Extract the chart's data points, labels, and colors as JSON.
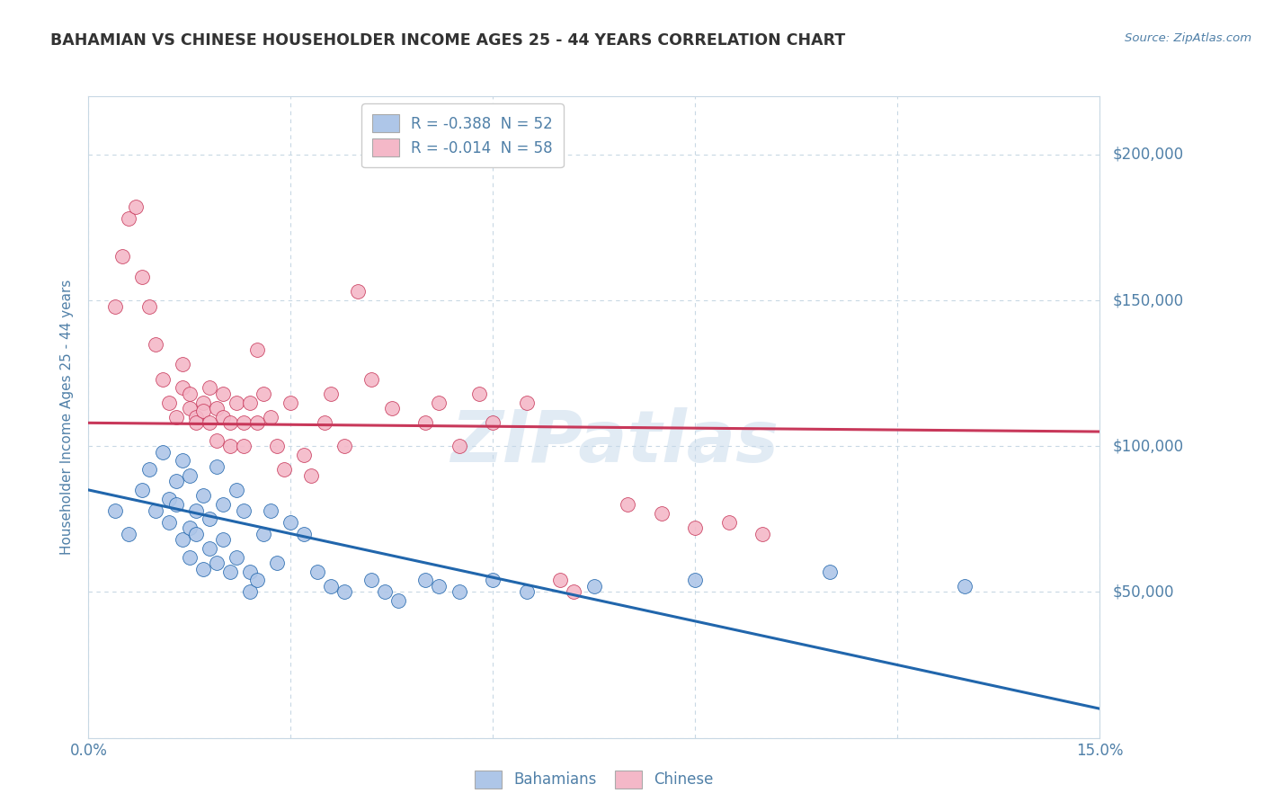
{
  "title": "BAHAMIAN VS CHINESE HOUSEHOLDER INCOME AGES 25 - 44 YEARS CORRELATION CHART",
  "source": "Source: ZipAtlas.com",
  "ylabel": "Householder Income Ages 25 - 44 years",
  "xlim": [
    0.0,
    0.15
  ],
  "ylim": [
    0,
    220000
  ],
  "yticks": [
    0,
    50000,
    100000,
    150000,
    200000
  ],
  "ytick_labels": [
    "",
    "$50,000",
    "$100,000",
    "$150,000",
    "$200,000"
  ],
  "xticks": [
    0.0,
    0.03,
    0.06,
    0.09,
    0.12,
    0.15
  ],
  "xtick_labels": [
    "0.0%",
    "",
    "",
    "",
    "",
    "15.0%"
  ],
  "legend_entries": [
    {
      "label": "R = -0.388  N = 52",
      "color": "#aec6e8"
    },
    {
      "label": "R = -0.014  N = 58",
      "color": "#f4b8c8"
    }
  ],
  "legend_bottom": [
    "Bahamians",
    "Chinese"
  ],
  "blue_scatter_color": "#aec6e8",
  "pink_scatter_color": "#f4b8c8",
  "blue_line_color": "#2166ac",
  "pink_line_color": "#c8385a",
  "watermark": "ZIPatlas",
  "watermark_color": "#c5d8ea",
  "background_color": "#ffffff",
  "grid_color": "#c8d8e4",
  "title_color": "#333333",
  "axis_color": "#5080a8",
  "blue_scatter": [
    [
      0.004,
      78000
    ],
    [
      0.006,
      70000
    ],
    [
      0.008,
      85000
    ],
    [
      0.009,
      92000
    ],
    [
      0.01,
      78000
    ],
    [
      0.011,
      98000
    ],
    [
      0.012,
      82000
    ],
    [
      0.012,
      74000
    ],
    [
      0.013,
      88000
    ],
    [
      0.013,
      80000
    ],
    [
      0.014,
      68000
    ],
    [
      0.014,
      95000
    ],
    [
      0.015,
      90000
    ],
    [
      0.015,
      72000
    ],
    [
      0.015,
      62000
    ],
    [
      0.016,
      78000
    ],
    [
      0.016,
      70000
    ],
    [
      0.017,
      58000
    ],
    [
      0.017,
      83000
    ],
    [
      0.018,
      65000
    ],
    [
      0.018,
      75000
    ],
    [
      0.019,
      60000
    ],
    [
      0.019,
      93000
    ],
    [
      0.02,
      80000
    ],
    [
      0.02,
      68000
    ],
    [
      0.021,
      57000
    ],
    [
      0.022,
      85000
    ],
    [
      0.022,
      62000
    ],
    [
      0.023,
      78000
    ],
    [
      0.024,
      57000
    ],
    [
      0.024,
      50000
    ],
    [
      0.025,
      54000
    ],
    [
      0.026,
      70000
    ],
    [
      0.027,
      78000
    ],
    [
      0.028,
      60000
    ],
    [
      0.03,
      74000
    ],
    [
      0.032,
      70000
    ],
    [
      0.034,
      57000
    ],
    [
      0.036,
      52000
    ],
    [
      0.038,
      50000
    ],
    [
      0.042,
      54000
    ],
    [
      0.044,
      50000
    ],
    [
      0.046,
      47000
    ],
    [
      0.05,
      54000
    ],
    [
      0.052,
      52000
    ],
    [
      0.055,
      50000
    ],
    [
      0.06,
      54000
    ],
    [
      0.065,
      50000
    ],
    [
      0.075,
      52000
    ],
    [
      0.09,
      54000
    ],
    [
      0.11,
      57000
    ],
    [
      0.13,
      52000
    ]
  ],
  "pink_scatter": [
    [
      0.004,
      148000
    ],
    [
      0.005,
      165000
    ],
    [
      0.006,
      178000
    ],
    [
      0.007,
      182000
    ],
    [
      0.008,
      158000
    ],
    [
      0.009,
      148000
    ],
    [
      0.01,
      135000
    ],
    [
      0.011,
      123000
    ],
    [
      0.012,
      115000
    ],
    [
      0.013,
      110000
    ],
    [
      0.014,
      120000
    ],
    [
      0.014,
      128000
    ],
    [
      0.015,
      113000
    ],
    [
      0.015,
      118000
    ],
    [
      0.016,
      110000
    ],
    [
      0.016,
      108000
    ],
    [
      0.017,
      115000
    ],
    [
      0.017,
      112000
    ],
    [
      0.018,
      108000
    ],
    [
      0.018,
      120000
    ],
    [
      0.019,
      113000
    ],
    [
      0.019,
      102000
    ],
    [
      0.02,
      118000
    ],
    [
      0.02,
      110000
    ],
    [
      0.021,
      108000
    ],
    [
      0.021,
      100000
    ],
    [
      0.022,
      115000
    ],
    [
      0.023,
      108000
    ],
    [
      0.023,
      100000
    ],
    [
      0.024,
      115000
    ],
    [
      0.025,
      133000
    ],
    [
      0.025,
      108000
    ],
    [
      0.026,
      118000
    ],
    [
      0.027,
      110000
    ],
    [
      0.028,
      100000
    ],
    [
      0.029,
      92000
    ],
    [
      0.03,
      115000
    ],
    [
      0.032,
      97000
    ],
    [
      0.033,
      90000
    ],
    [
      0.035,
      108000
    ],
    [
      0.036,
      118000
    ],
    [
      0.038,
      100000
    ],
    [
      0.04,
      153000
    ],
    [
      0.042,
      123000
    ],
    [
      0.045,
      113000
    ],
    [
      0.05,
      108000
    ],
    [
      0.052,
      115000
    ],
    [
      0.055,
      100000
    ],
    [
      0.058,
      118000
    ],
    [
      0.06,
      108000
    ],
    [
      0.065,
      115000
    ],
    [
      0.07,
      54000
    ],
    [
      0.072,
      50000
    ],
    [
      0.08,
      80000
    ],
    [
      0.085,
      77000
    ],
    [
      0.09,
      72000
    ],
    [
      0.095,
      74000
    ],
    [
      0.1,
      70000
    ]
  ],
  "blue_line": {
    "x0": 0.0,
    "y0": 85000,
    "x1": 0.15,
    "y1": 10000
  },
  "pink_line": {
    "x0": 0.0,
    "y0": 108000,
    "x1": 0.15,
    "y1": 105000
  }
}
